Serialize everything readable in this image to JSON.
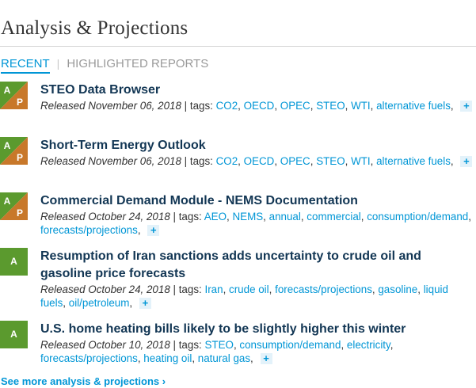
{
  "header": {
    "title": "Analysis & Projections"
  },
  "tabs": [
    {
      "label": "RECENT",
      "active": true
    },
    {
      "label": "HIGHLIGHTED REPORTS",
      "active": false
    }
  ],
  "tab_separator": "|",
  "badge_labels": {
    "analysis": "A",
    "projections": "P"
  },
  "badge_colors": {
    "analysis_green": "#5b9a2e",
    "projections_orange": "#c8782a"
  },
  "items": [
    {
      "type": "A/P",
      "title": "STEO Data Browser",
      "released": "Released November 06, 2018",
      "tags_label": "| tags:",
      "tags": [
        "CO2",
        "OECD",
        "OPEC",
        "STEO",
        "WTI",
        "alternative fuels"
      ]
    },
    {
      "type": "A/P",
      "title": "Short-Term Energy Outlook",
      "released": "Released November 06, 2018",
      "tags_label": "| tags:",
      "tags": [
        "CO2",
        "OECD",
        "OPEC",
        "STEO",
        "WTI",
        "alternative fuels"
      ]
    },
    {
      "type": "A/P",
      "title": "Commercial Demand Module - NEMS Documentation",
      "released": "Released October 24, 2018",
      "tags_label": "| tags:",
      "tags": [
        "AEO",
        "NEMS",
        "annual",
        "commercial",
        "consumption/demand",
        "forecasts/projections"
      ]
    },
    {
      "type": "A",
      "title": "Resumption of Iran sanctions adds uncertainty to crude oil and gasoline price forecasts",
      "released": "Released October 24, 2018",
      "tags_label": "| tags:",
      "tags": [
        "Iran",
        "crude oil",
        "forecasts/projections",
        "gasoline",
        "liquid fuels",
        "oil/petroleum"
      ]
    },
    {
      "type": "A",
      "title": "U.S. home heating bills likely to be slightly higher this winter",
      "released": "Released October 10, 2018",
      "tags_label": "| tags:",
      "tags": [
        "STEO",
        "consumption/demand",
        "electricity",
        "forecasts/projections",
        "heating oil",
        "natural gas"
      ]
    }
  ],
  "more_tags_symbol": "+",
  "see_more": "See more analysis & projections ›"
}
